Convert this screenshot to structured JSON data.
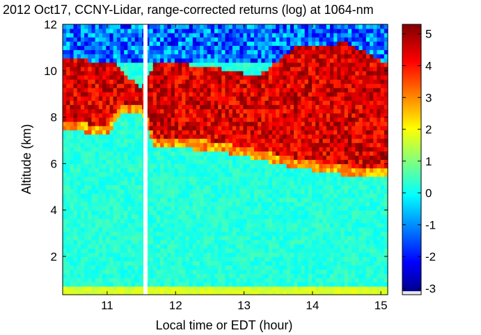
{
  "chart_data": {
    "type": "heatmap",
    "title": "2012 Oct17, CCNY-Lidar, range-corrected returns (log) at 1064-nm",
    "xlabel": "Local time or EDT (hour)",
    "ylabel": "Altitude (km)",
    "xlim": [
      10.35,
      15.1
    ],
    "ylim": [
      0.35,
      12
    ],
    "x_ticks": [
      "11",
      "12",
      "13",
      "14",
      "15"
    ],
    "y_ticks": [
      "2",
      "4",
      "6",
      "8",
      "10",
      "12"
    ],
    "colorbar": {
      "range": [
        -3.2,
        5.3
      ],
      "ticks": [
        "-3",
        "-2",
        "-1",
        "0",
        "1",
        "2",
        "3",
        "4",
        "5"
      ],
      "colormap": "jet"
    },
    "data_gap_hours": [
      11.53,
      11.59
    ],
    "features": {
      "near_ground_layer_km": [
        0.35,
        0.8
      ],
      "near_ground_value": 1.8,
      "background_value": 0.3,
      "noise_region_above_km": 10.4,
      "noise_value": -2.5,
      "cloud_value": 4.5,
      "cloud_top_km": [
        [
          10.35,
          10.5
        ],
        [
          11.1,
          10.4
        ],
        [
          11.5,
          9.2
        ],
        [
          11.7,
          10.4
        ],
        [
          12.5,
          10.2
        ],
        [
          13.2,
          9.8
        ],
        [
          13.8,
          11.1
        ],
        [
          14.5,
          11.2
        ],
        [
          15.05,
          10.4
        ]
      ],
      "cloud_base_km": [
        [
          10.35,
          7.9
        ],
        [
          11.0,
          7.6
        ],
        [
          11.2,
          8.6
        ],
        [
          11.5,
          8.6
        ],
        [
          11.7,
          7.1
        ],
        [
          12.5,
          7.0
        ],
        [
          13.2,
          6.6
        ],
        [
          13.8,
          6.2
        ],
        [
          14.5,
          5.9
        ],
        [
          15.05,
          5.8
        ]
      ]
    }
  }
}
